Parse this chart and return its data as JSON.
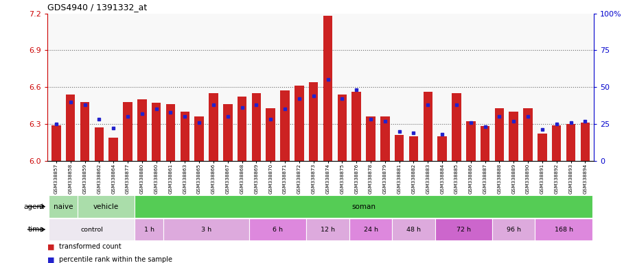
{
  "title": "GDS4940 / 1391332_at",
  "samples": [
    "GSM338857",
    "GSM338858",
    "GSM338859",
    "GSM338862",
    "GSM338864",
    "GSM338877",
    "GSM338880",
    "GSM338860",
    "GSM338861",
    "GSM338863",
    "GSM338865",
    "GSM338866",
    "GSM338867",
    "GSM338868",
    "GSM338869",
    "GSM338870",
    "GSM338871",
    "GSM338872",
    "GSM338873",
    "GSM338874",
    "GSM338875",
    "GSM338876",
    "GSM338878",
    "GSM338879",
    "GSM338881",
    "GSM338882",
    "GSM338883",
    "GSM338884",
    "GSM338885",
    "GSM338886",
    "GSM338887",
    "GSM338888",
    "GSM338889",
    "GSM338890",
    "GSM338891",
    "GSM338892",
    "GSM338893",
    "GSM338894"
  ],
  "red_values": [
    6.29,
    6.54,
    6.48,
    6.27,
    6.19,
    6.48,
    6.5,
    6.47,
    6.46,
    6.4,
    6.36,
    6.55,
    6.46,
    6.52,
    6.55,
    6.43,
    6.57,
    6.61,
    6.64,
    7.18,
    6.54,
    6.56,
    6.36,
    6.36,
    6.21,
    6.2,
    6.56,
    6.2,
    6.55,
    6.32,
    6.28,
    6.43,
    6.4,
    6.43,
    6.22,
    6.29,
    6.3,
    6.31
  ],
  "blue_values": [
    25,
    40,
    38,
    28,
    22,
    30,
    32,
    35,
    33,
    30,
    26,
    38,
    30,
    36,
    38,
    28,
    35,
    42,
    44,
    55,
    42,
    48,
    28,
    27,
    20,
    19,
    38,
    18,
    38,
    26,
    23,
    30,
    27,
    30,
    21,
    25,
    26,
    27
  ],
  "ymin": 6.0,
  "ymax": 7.2,
  "yticks_left": [
    6.0,
    6.3,
    6.6,
    6.9,
    7.2
  ],
  "yticks_right": [
    0,
    25,
    50,
    75,
    100
  ],
  "dotted_lines": [
    6.3,
    6.6,
    6.9
  ],
  "bar_color": "#cc2222",
  "dot_color": "#2222cc",
  "axis_color_left": "#cc0000",
  "axis_color_right": "#0000cc",
  "naive_color": "#aaddaa",
  "vehicle_color": "#aaddaa",
  "soman_color": "#55cc55",
  "control_color": "#f0e8f0",
  "time_color": "#dd99dd",
  "time_color_alt": "#cc66cc",
  "background_color": "#ffffff",
  "plot_bg_color": "#f8f8f8",
  "agent_configs": [
    {
      "label": "naive",
      "s": 0,
      "e": 1,
      "color": "#aaddaa"
    },
    {
      "label": "vehicle",
      "s": 2,
      "e": 5,
      "color": "#aaddaa"
    },
    {
      "label": "soman",
      "s": 6,
      "e": 37,
      "color": "#55cc55"
    }
  ],
  "time_configs": [
    {
      "label": "control",
      "s": 0,
      "e": 5,
      "color": "#ede8f0"
    },
    {
      "label": "1 h",
      "s": 6,
      "e": 7,
      "color": "#ddaadd"
    },
    {
      "label": "3 h",
      "s": 8,
      "e": 13,
      "color": "#ddaadd"
    },
    {
      "label": "6 h",
      "s": 14,
      "e": 17,
      "color": "#dd88dd"
    },
    {
      "label": "12 h",
      "s": 18,
      "e": 20,
      "color": "#ddaadd"
    },
    {
      "label": "24 h",
      "s": 21,
      "e": 23,
      "color": "#dd88dd"
    },
    {
      "label": "48 h",
      "s": 24,
      "e": 26,
      "color": "#ddaadd"
    },
    {
      "label": "72 h",
      "s": 27,
      "e": 30,
      "color": "#cc66cc"
    },
    {
      "label": "96 h",
      "s": 31,
      "e": 33,
      "color": "#ddaadd"
    },
    {
      "label": "168 h",
      "s": 34,
      "e": 37,
      "color": "#dd88dd"
    }
  ]
}
